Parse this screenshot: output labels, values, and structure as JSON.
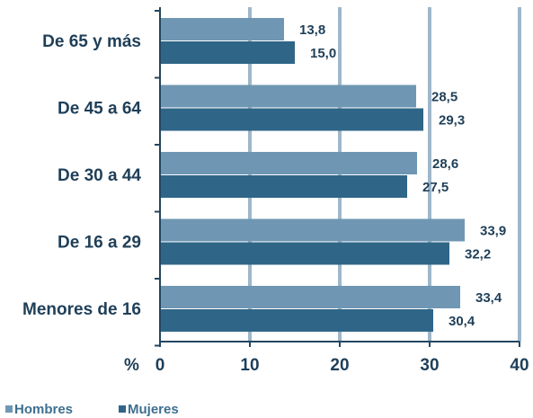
{
  "chart_data": {
    "type": "bar",
    "orientation": "horizontal",
    "categories": [
      "De 65 y más",
      "De 45 a 64",
      "De 30 a 44",
      "De 16 a 29",
      "Menores de 16"
    ],
    "series": [
      {
        "name": "Hombres",
        "values": [
          13.8,
          28.5,
          28.6,
          33.9,
          33.4
        ],
        "labels": [
          "13,8",
          "28,5",
          "28,6",
          "33,9",
          "33,4"
        ],
        "color": "#6f97b3"
      },
      {
        "name": "Mujeres",
        "values": [
          15.0,
          29.3,
          27.5,
          32.2,
          30.4
        ],
        "labels": [
          "15,0",
          "29,3",
          "27,5",
          "32,2",
          "30,4"
        ],
        "color": "#2f6688"
      }
    ],
    "xlim": [
      0,
      40
    ],
    "xticks": [
      0,
      10,
      20,
      30,
      40
    ],
    "xtick_labels": [
      "0",
      "10",
      "20",
      "30",
      "40"
    ],
    "unit_label": "%",
    "grid": "vertical",
    "legend": "bottom-left",
    "colors": {
      "gridline": "#9fb7c9",
      "axis": "#24465f",
      "text": "#1f3f58"
    }
  }
}
